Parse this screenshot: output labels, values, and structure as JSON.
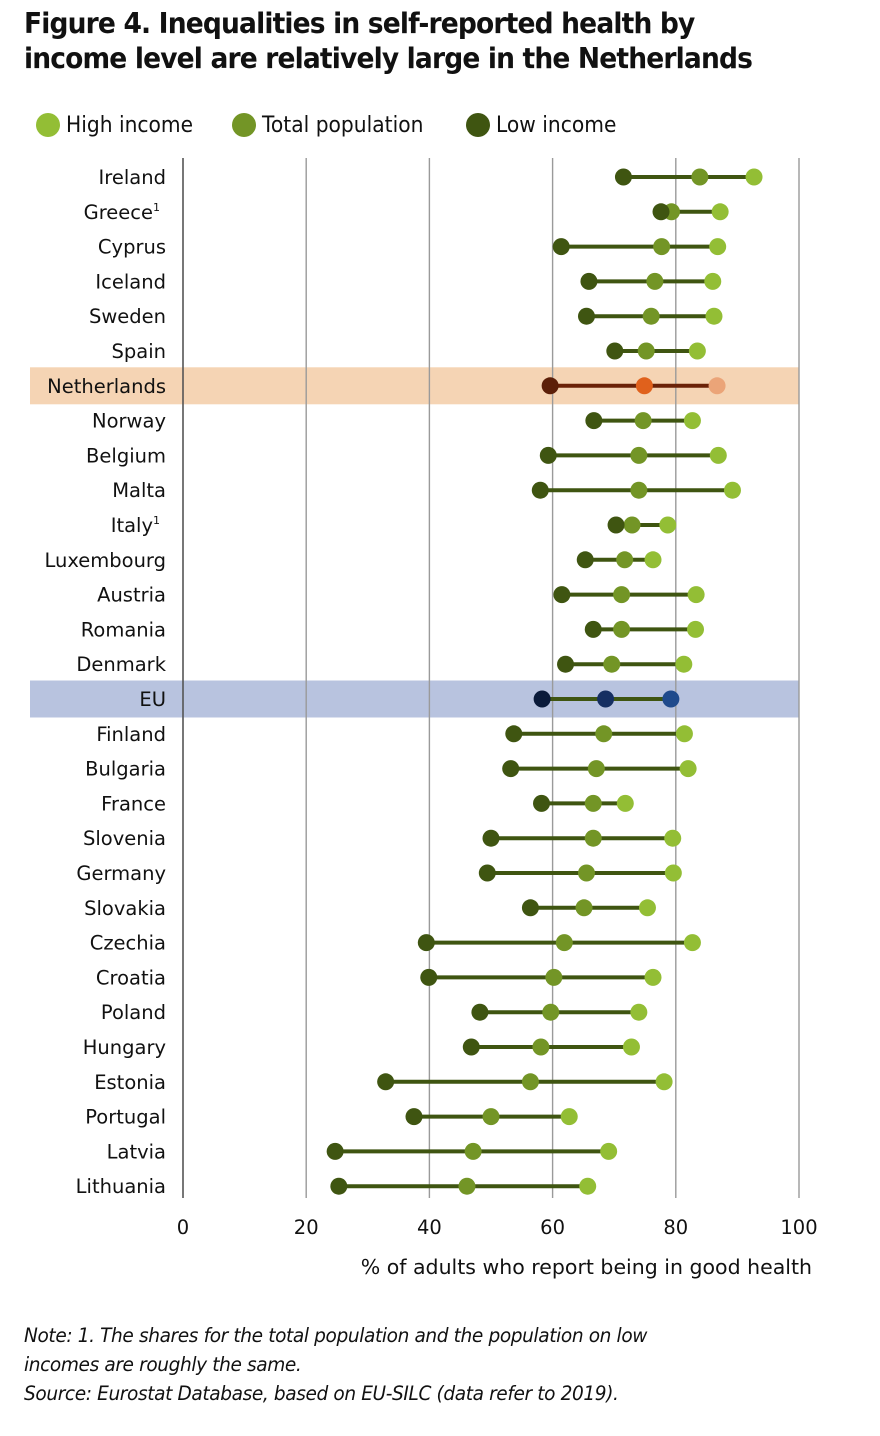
{
  "title_line1": "Figure 4. Inequalities in self-reported health by",
  "title_line2": "income level are relatively large in the Netherlands",
  "legend": [
    {
      "name": "High income",
      "color": "#93be35"
    },
    {
      "name": "Total population",
      "color": "#739526"
    },
    {
      "name": "Low income",
      "color": "#3f5511"
    }
  ],
  "colors": {
    "line": "#3f5511",
    "grid": "#9a9a9a",
    "highlight_netherlands_band": "#f5d4b4",
    "highlight_netherlands": {
      "low": "#5c1f08",
      "total": "#e0611c",
      "high": "#eba478",
      "line": "#6b2208"
    },
    "highlight_eu_band": "#b8c3df",
    "highlight_eu": {
      "low": "#0a1a3a",
      "total": "#162f62",
      "high": "#1f4a8c",
      "line": "#3f5511"
    }
  },
  "chart_data": {
    "type": "dumbbell",
    "title": "Figure 4. Inequalities in self-reported health by income level are relatively large in the Netherlands",
    "xlabel": "% of adults who report being in good health",
    "ylabel": "",
    "xlim": [
      0,
      100
    ],
    "xticks": [
      "0",
      "20",
      "40",
      "60",
      "80",
      "100"
    ],
    "xtick_values": [
      0,
      20,
      40,
      60,
      80,
      100
    ],
    "grid": "vertical",
    "legend_position": "top-left",
    "series_names": [
      "High income",
      "Total population",
      "Low income"
    ],
    "categories": [
      "Ireland",
      "Greece",
      "Cyprus",
      "Iceland",
      "Sweden",
      "Spain",
      "Netherlands",
      "Norway",
      "Belgium",
      "Malta",
      "Italy",
      "Luxembourg",
      "Austria",
      "Romania",
      "Denmark",
      "EU",
      "Finland",
      "Bulgaria",
      "France",
      "Slovenia",
      "Germany",
      "Slovakia",
      "Czechia",
      "Croatia",
      "Poland",
      "Hungary",
      "Estonia",
      "Portugal",
      "Latvia",
      "Lithuania"
    ],
    "footnote_markers": [
      "",
      "1",
      "",
      "",
      "",
      "",
      "",
      "",
      "",
      "",
      "1",
      "",
      "",
      "",
      "",
      "",
      "",
      "",
      "",
      "",
      "",
      "",
      "",
      "",
      "",
      "",
      "",
      "",
      "",
      ""
    ],
    "highlighted": [
      "Netherlands",
      "EU"
    ],
    "series": [
      {
        "name": "Low income",
        "values": [
          71.5,
          77.6,
          61.4,
          65.9,
          65.5,
          70.1,
          59.6,
          66.7,
          59.3,
          58.0,
          70.3,
          65.3,
          61.5,
          66.6,
          62.1,
          58.3,
          53.7,
          53.2,
          58.2,
          50.0,
          49.4,
          56.4,
          39.5,
          39.9,
          48.2,
          46.8,
          32.9,
          37.5,
          24.7,
          25.3
        ]
      },
      {
        "name": "Total population",
        "values": [
          83.9,
          79.3,
          77.7,
          76.6,
          76.0,
          75.2,
          74.9,
          74.7,
          74.0,
          74.0,
          72.9,
          71.7,
          71.2,
          71.2,
          69.6,
          68.6,
          68.3,
          67.1,
          66.6,
          66.6,
          65.5,
          65.1,
          61.9,
          60.2,
          59.7,
          58.1,
          56.4,
          50.0,
          47.1,
          46.1
        ]
      },
      {
        "name": "High income",
        "values": [
          92.7,
          87.2,
          86.8,
          86.0,
          86.2,
          83.5,
          86.7,
          82.7,
          86.9,
          89.2,
          78.7,
          76.3,
          83.3,
          83.2,
          81.3,
          79.2,
          81.4,
          82.0,
          71.8,
          79.5,
          79.6,
          75.4,
          82.7,
          76.3,
          74.0,
          72.8,
          78.1,
          62.7,
          69.1,
          65.7
        ]
      }
    ]
  },
  "notes": {
    "line1": "Note: 1. The shares for the total population and the population on low",
    "line2": "incomes are roughly the same.",
    "line3": "Source: Eurostat Database, based on EU-SILC (data refer to 2019)."
  }
}
